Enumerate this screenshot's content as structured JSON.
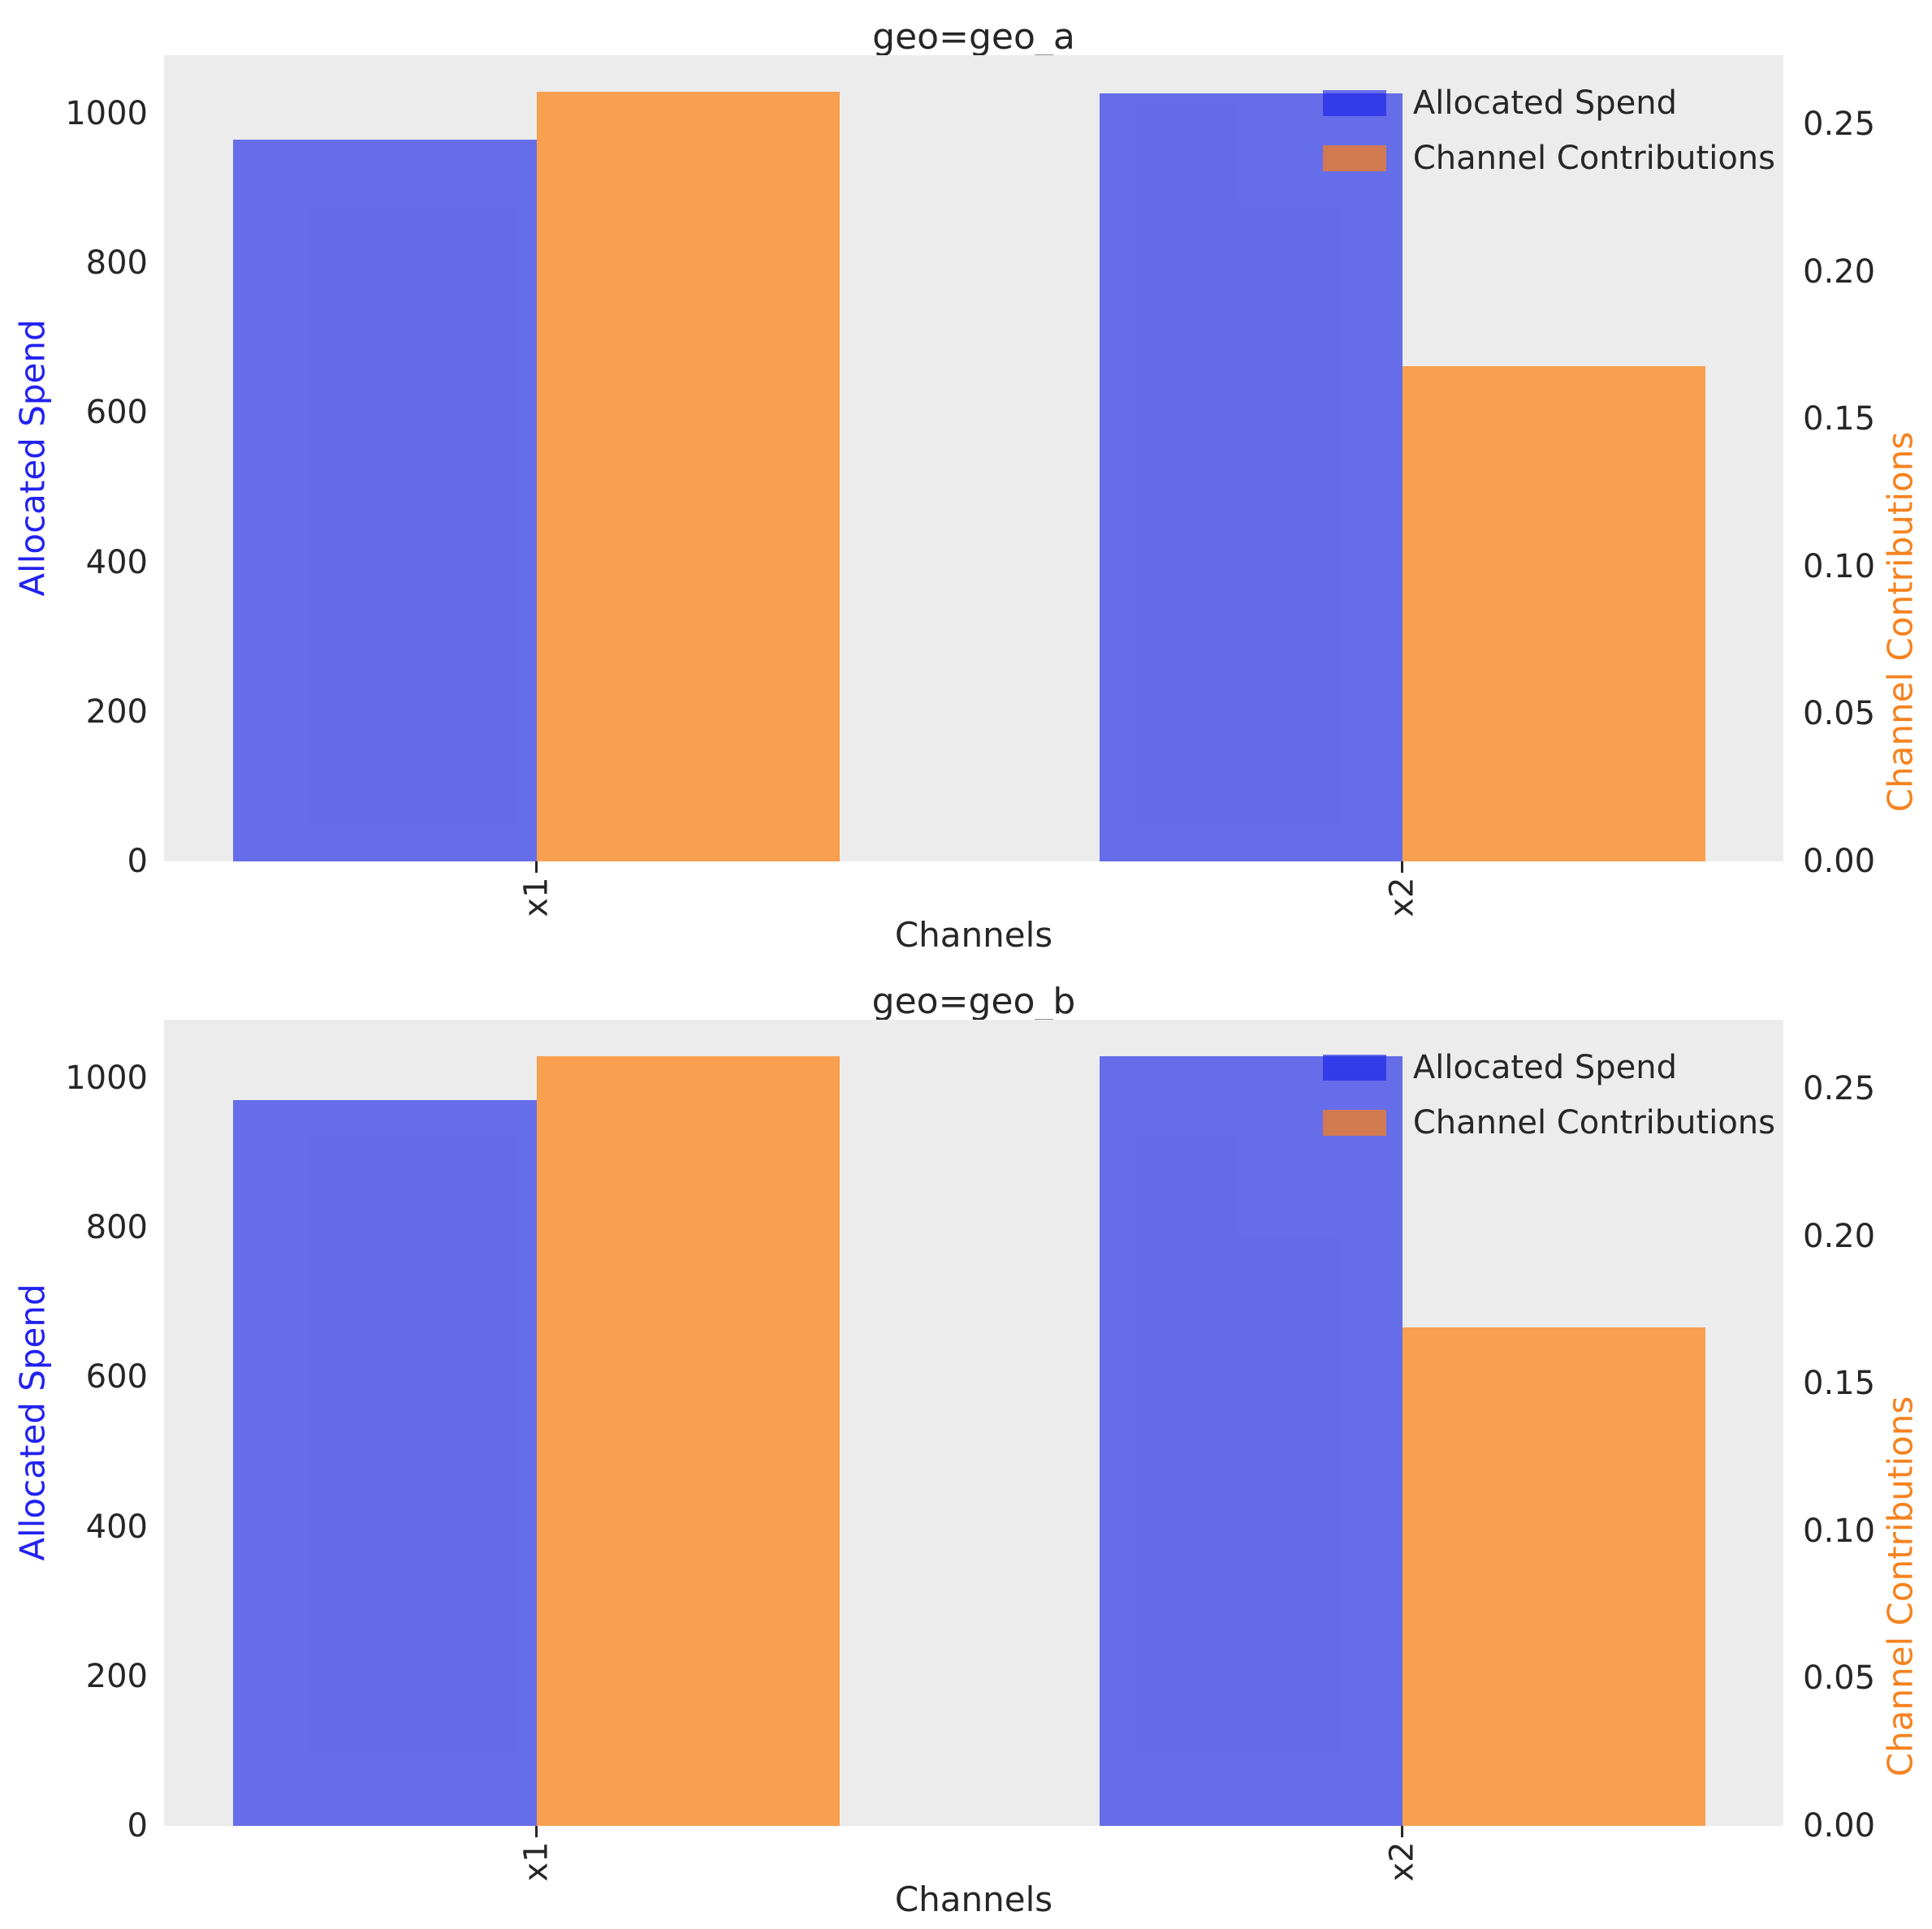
{
  "figure": {
    "background": "#ffffff",
    "plot_background": "#ececec",
    "text_color": "#262626",
    "spend_color": "rgba(20,30,230,0.62)",
    "contrib_color": "rgba(255,127,14,0.70)",
    "spend_axis_label_color": "#2222f0",
    "contrib_axis_label_color": "#f5821f"
  },
  "chart_data": [
    {
      "type": "bar",
      "title": "geo=geo_a",
      "xlabel": "Channels",
      "ylabel_left": "Allocated Spend",
      "ylabel_right": "Channel Contributions",
      "categories": [
        "x1",
        "x2"
      ],
      "series": [
        {
          "name": "Allocated Spend",
          "axis": "left",
          "values": [
            965,
            1027
          ]
        },
        {
          "name": "Channel Contributions",
          "axis": "right",
          "values": [
            0.261,
            0.168
          ]
        }
      ],
      "ylim_left": [
        0,
        1078
      ],
      "ylim_right": [
        0,
        0.2735
      ],
      "yticks_left": [
        "0",
        "200",
        "400",
        "600",
        "800",
        "1000"
      ],
      "yticks_right": [
        "0.00",
        "0.05",
        "0.10",
        "0.15",
        "0.20",
        "0.25"
      ],
      "xlim": [
        -0.43,
        1.44
      ],
      "bar_width": 0.35,
      "grid": false,
      "legend_position": "upper right",
      "legend": [
        "Allocated Spend",
        "Channel Contributions"
      ]
    },
    {
      "type": "bar",
      "title": "geo=geo_b",
      "xlabel": "Channels",
      "ylabel_left": "Allocated Spend",
      "ylabel_right": "Channel Contributions",
      "categories": [
        "x1",
        "x2"
      ],
      "series": [
        {
          "name": "Allocated Spend",
          "axis": "left",
          "values": [
            970,
            1029
          ]
        },
        {
          "name": "Channel Contributions",
          "axis": "right",
          "values": [
            0.261,
            0.169
          ]
        }
      ],
      "ylim_left": [
        0,
        1078
      ],
      "ylim_right": [
        0,
        0.2735
      ],
      "yticks_left": [
        "0",
        "200",
        "400",
        "600",
        "800",
        "1000"
      ],
      "yticks_right": [
        "0.00",
        "0.05",
        "0.10",
        "0.15",
        "0.20",
        "0.25"
      ],
      "xlim": [
        -0.43,
        1.44
      ],
      "bar_width": 0.35,
      "grid": false,
      "legend_position": "upper right",
      "legend": [
        "Allocated Spend",
        "Channel Contributions"
      ]
    }
  ]
}
